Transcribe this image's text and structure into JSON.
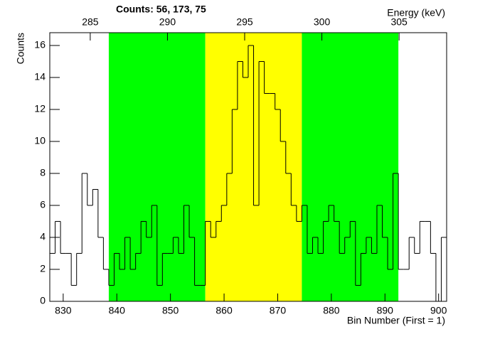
{
  "chart_data": {
    "type": "histogram",
    "title": "Counts:   56,   173,   75",
    "x_label": "Bin Number (First = 1)",
    "y_label": "Counts",
    "x2_label": "Energy (keV)",
    "bins": [
      827.5,
      828.5,
      829.5,
      830.5,
      831.5,
      832.5,
      833.5,
      834.5,
      835.5,
      836.5,
      837.5,
      838.5,
      839.5,
      840.5,
      841.5,
      842.5,
      843.5,
      844.5,
      845.5,
      846.5,
      847.5,
      848.5,
      849.5,
      850.5,
      851.5,
      852.5,
      853.5,
      854.5,
      855.5,
      856.5,
      857.5,
      858.5,
      859.5,
      860.5,
      861.5,
      862.5,
      863.5,
      864.5,
      865.5,
      866.5,
      867.5,
      868.5,
      869.5,
      870.5,
      871.5,
      872.5,
      873.5,
      874.5,
      875.5,
      876.5,
      877.5,
      878.5,
      879.5,
      880.5,
      881.5,
      882.5,
      883.5,
      884.5,
      885.5,
      886.5,
      887.5,
      888.5,
      889.5,
      890.5,
      891.5,
      892.5,
      893.5,
      894.5,
      895.5,
      896.5,
      897.5,
      898.5,
      899.5,
      900.5,
      901.5
    ],
    "counts": [
      3,
      5,
      3,
      3,
      1,
      3,
      8,
      6,
      7,
      4,
      2,
      1,
      3,
      2,
      4,
      2,
      3,
      5,
      4,
      6,
      1,
      3,
      3,
      4,
      3,
      6,
      4,
      1,
      1,
      5,
      4,
      5,
      6,
      8,
      12,
      15,
      14,
      16,
      6,
      15,
      13,
      13,
      12,
      10,
      8,
      6,
      5,
      6,
      3,
      4,
      3,
      5,
      6,
      5,
      3,
      4,
      5,
      1,
      3,
      4,
      3,
      6,
      4,
      2,
      8,
      2,
      2,
      4,
      3,
      5,
      5,
      3,
      0,
      4
    ],
    "line_color": "#000000",
    "regions": [
      {
        "from": 838.5,
        "to": 856.5,
        "color": "#00ff00"
      },
      {
        "from": 856.5,
        "to": 874.5,
        "color": "#ffff00"
      },
      {
        "from": 874.5,
        "to": 892.5,
        "color": "#00ff00"
      }
    ],
    "xlim": [
      827.5,
      901.5
    ],
    "xticks": [
      830,
      840,
      850,
      860,
      870,
      880,
      890,
      900
    ],
    "ylim": [
      0,
      16.8
    ],
    "yticks": [
      0,
      2,
      4,
      6,
      8,
      10,
      12,
      14,
      16
    ],
    "x2lim": [
      282.38,
      308.08
    ],
    "x2ticks": [
      285,
      290,
      295,
      300,
      305
    ]
  }
}
